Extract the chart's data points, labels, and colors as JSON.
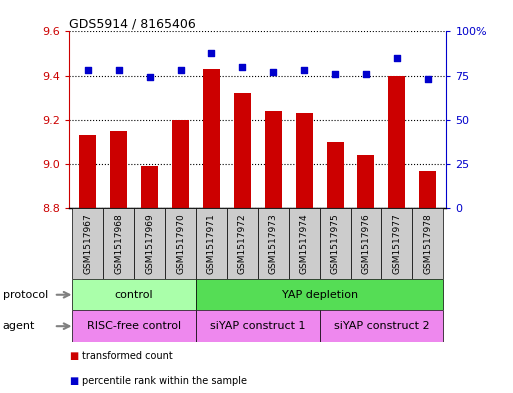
{
  "title": "GDS5914 / 8165406",
  "samples": [
    "GSM1517967",
    "GSM1517968",
    "GSM1517969",
    "GSM1517970",
    "GSM1517971",
    "GSM1517972",
    "GSM1517973",
    "GSM1517974",
    "GSM1517975",
    "GSM1517976",
    "GSM1517977",
    "GSM1517978"
  ],
  "transformed_count": [
    9.13,
    9.15,
    8.99,
    9.2,
    9.43,
    9.32,
    9.24,
    9.23,
    9.1,
    9.04,
    9.4,
    8.97
  ],
  "percentile_rank": [
    78,
    78,
    74,
    78,
    88,
    80,
    77,
    78,
    76,
    76,
    85,
    73
  ],
  "ylim_left": [
    8.8,
    9.6
  ],
  "ylim_right": [
    0,
    100
  ],
  "yticks_left": [
    8.8,
    9.0,
    9.2,
    9.4,
    9.6
  ],
  "yticks_right": [
    0,
    25,
    50,
    75,
    100
  ],
  "bar_color": "#cc0000",
  "dot_color": "#0000cc",
  "protocol_groups": [
    {
      "label": "control",
      "start": 0,
      "end": 3,
      "color": "#aaffaa"
    },
    {
      "label": "YAP depletion",
      "start": 4,
      "end": 11,
      "color": "#55dd55"
    }
  ],
  "agent_groups": [
    {
      "label": "RISC-free control",
      "start": 0,
      "end": 3,
      "color": "#ee88ee"
    },
    {
      "label": "siYAP construct 1",
      "start": 4,
      "end": 7,
      "color": "#ee88ee"
    },
    {
      "label": "siYAP construct 2",
      "start": 8,
      "end": 11,
      "color": "#ee88ee"
    }
  ],
  "legend_items": [
    {
      "label": "transformed count",
      "color": "#cc0000"
    },
    {
      "label": "percentile rank within the sample",
      "color": "#0000cc"
    }
  ],
  "protocol_label": "protocol",
  "agent_label": "agent",
  "bar_color_left": "#cc0000",
  "ylabel_right_color": "#0000cc",
  "sample_box_color": "#cccccc"
}
